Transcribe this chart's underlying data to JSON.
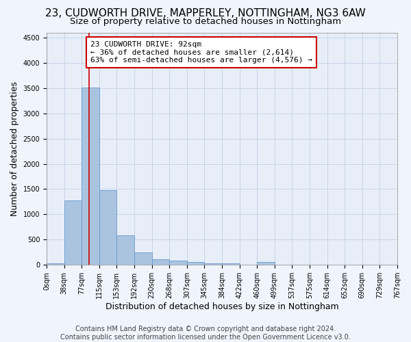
{
  "title": "23, CUDWORTH DRIVE, MAPPERLEY, NOTTINGHAM, NG3 6AW",
  "subtitle": "Size of property relative to detached houses in Nottingham",
  "xlabel": "Distribution of detached houses by size in Nottingham",
  "ylabel": "Number of detached properties",
  "bar_color": "#aac4e0",
  "bar_edge_color": "#6699cc",
  "bin_labels": [
    "0sqm",
    "38sqm",
    "77sqm",
    "115sqm",
    "153sqm",
    "192sqm",
    "230sqm",
    "268sqm",
    "307sqm",
    "345sqm",
    "384sqm",
    "422sqm",
    "460sqm",
    "499sqm",
    "537sqm",
    "575sqm",
    "614sqm",
    "652sqm",
    "690sqm",
    "729sqm",
    "767sqm"
  ],
  "bar_values": [
    35,
    1270,
    3510,
    1480,
    580,
    240,
    110,
    80,
    55,
    30,
    30,
    0,
    55,
    0,
    0,
    0,
    0,
    0,
    0,
    0
  ],
  "property_line_x": 92,
  "bin_width": 38,
  "ylim": [
    0,
    4600
  ],
  "yticks": [
    0,
    500,
    1000,
    1500,
    2000,
    2500,
    3000,
    3500,
    4000,
    4500
  ],
  "annotation_line1": "23 CUDWORTH DRIVE: 92sqm",
  "annotation_line2": "← 36% of detached houses are smaller (2,614)",
  "annotation_line3": "63% of semi-detached houses are larger (4,576) →",
  "annotation_box_color": "#ffffff",
  "annotation_border_color": "#cc0000",
  "red_line_color": "#cc0000",
  "grid_color": "#c8d4e8",
  "background_color": "#e8eef8",
  "fig_background_color": "#f0f4fc",
  "footer_line1": "Contains HM Land Registry data © Crown copyright and database right 2024.",
  "footer_line2": "Contains public sector information licensed under the Open Government Licence v3.0.",
  "title_fontsize": 11,
  "subtitle_fontsize": 9.5,
  "xlabel_fontsize": 9,
  "ylabel_fontsize": 9,
  "tick_fontsize": 7,
  "footer_fontsize": 7,
  "annotation_fontsize": 8
}
